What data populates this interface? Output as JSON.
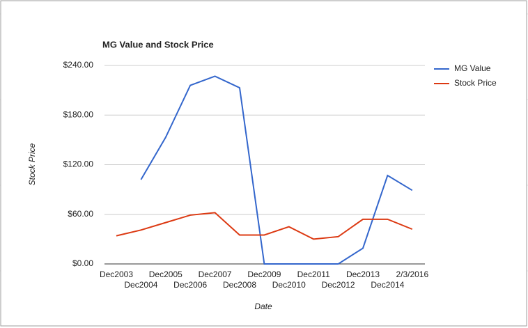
{
  "chart_data": {
    "type": "line",
    "title": "MG Value and Stock Price",
    "x_label": "Date",
    "y_label": "Stock Price",
    "categories": [
      "Dec2003",
      "Dec2004",
      "Dec2005",
      "Dec2006",
      "Dec2007",
      "Dec2008",
      "Dec2009",
      "Dec2010",
      "Dec2011",
      "Dec2012",
      "Dec2013",
      "Dec2014",
      "2/3/2016"
    ],
    "series": [
      {
        "name": "MG Value",
        "color": "#3366cc",
        "values": [
          null,
          102,
          153,
          216,
          227,
          213,
          0,
          0,
          0,
          0,
          19,
          107,
          89
        ]
      },
      {
        "name": "Stock Price",
        "color": "#dc3912",
        "values": [
          34,
          41,
          50,
          59,
          62,
          35,
          35,
          45,
          30,
          33,
          54,
          54,
          42
        ]
      }
    ],
    "ylim": [
      0,
      240
    ],
    "yticks": [
      {
        "value": 0,
        "label": "$0.00"
      },
      {
        "value": 60,
        "label": "$60.00"
      },
      {
        "value": 120,
        "label": "$120.00"
      },
      {
        "value": 180,
        "label": "$180.00"
      },
      {
        "value": 240,
        "label": "$240.00"
      }
    ],
    "grid": true,
    "legend": "right"
  }
}
